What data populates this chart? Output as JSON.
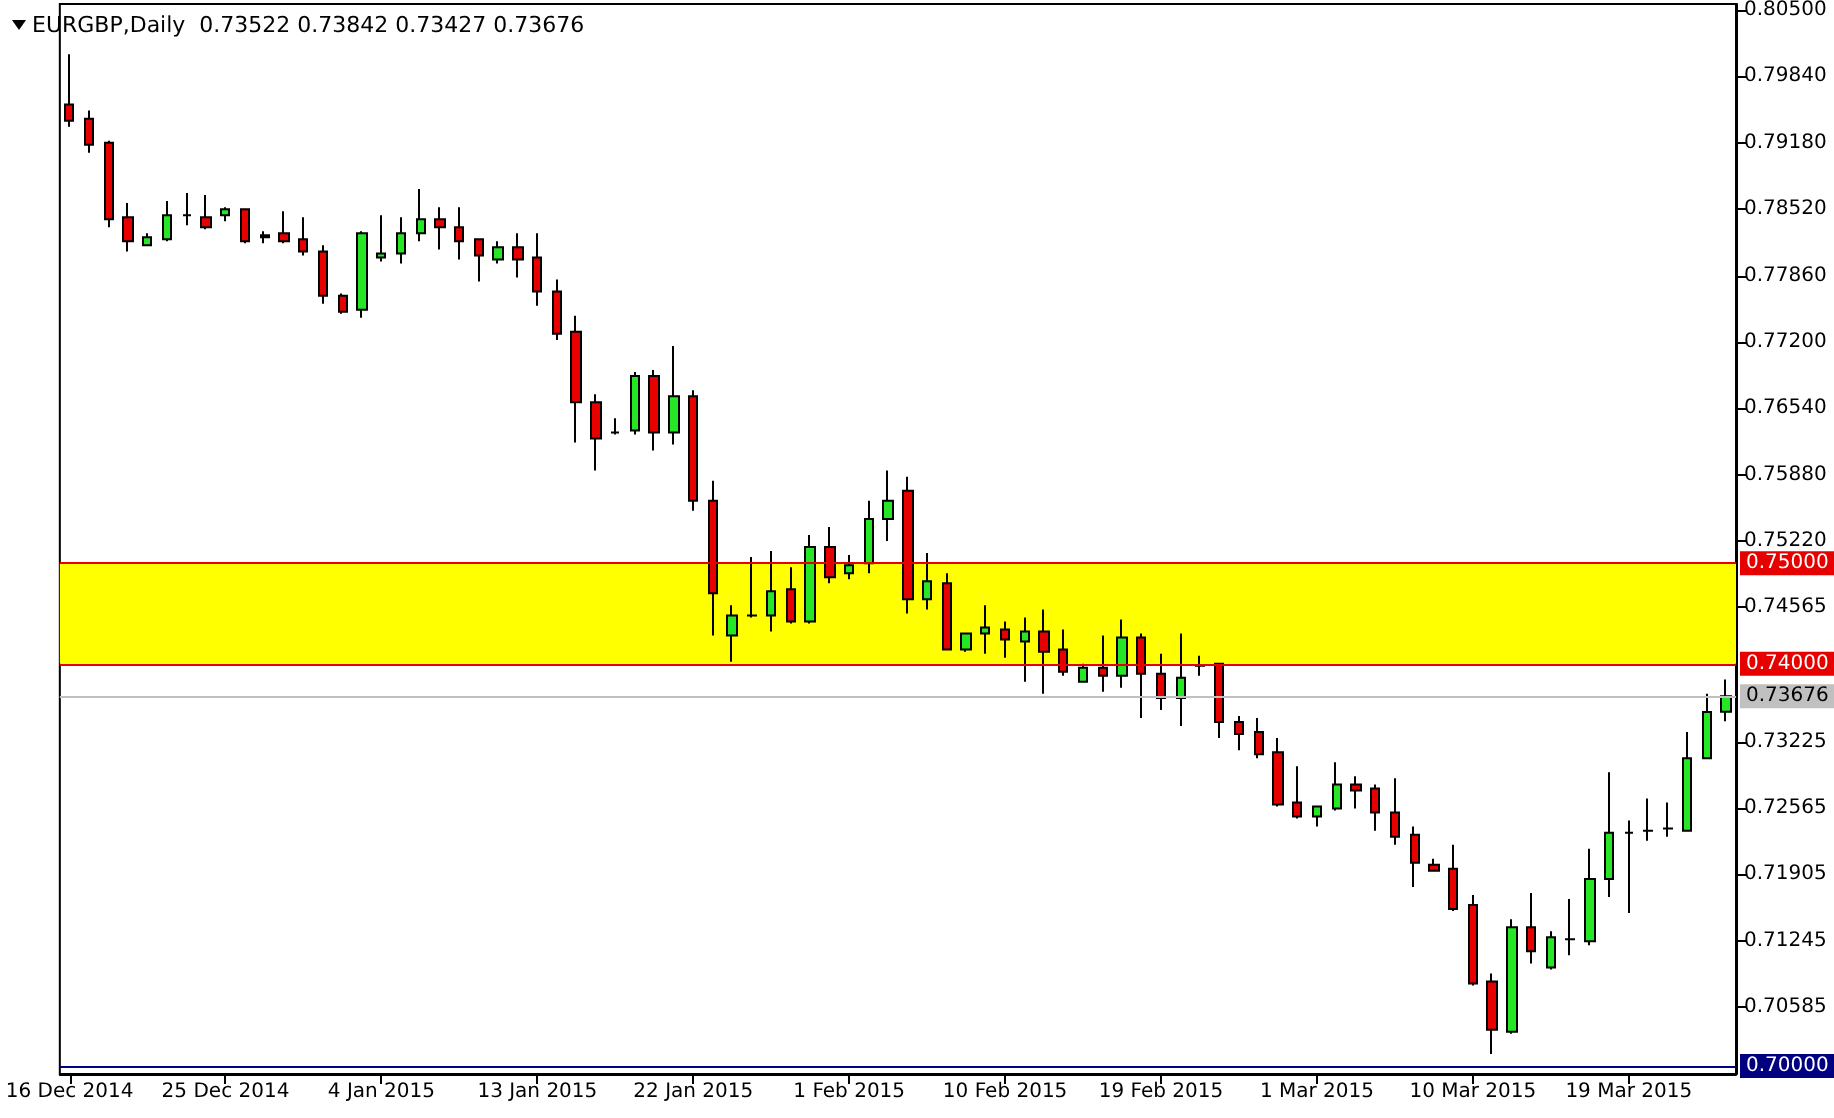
{
  "chart_data": {
    "type": "candlestick",
    "title": "EURGBP,Daily  0.73522 0.73842 0.73427 0.73676",
    "categories": [
      "16 Dec 2014",
      null,
      null,
      null,
      null,
      null,
      null,
      null,
      "25 Dec 2014",
      null,
      null,
      null,
      null,
      null,
      null,
      null,
      "4 Jan 2015",
      null,
      null,
      null,
      null,
      null,
      null,
      null,
      "13 Jan 2015",
      null,
      null,
      null,
      null,
      null,
      null,
      null,
      "22 Jan 2015",
      null,
      null,
      null,
      null,
      null,
      null,
      null,
      "1 Feb 2015",
      null,
      null,
      null,
      null,
      null,
      null,
      null,
      "10 Feb 2015",
      null,
      null,
      null,
      null,
      null,
      null,
      null,
      "19 Feb 2015",
      null,
      null,
      null,
      null,
      null,
      null,
      null,
      "1 Mar 2015",
      null,
      null,
      null,
      null,
      null,
      null,
      null,
      "10 Mar 2015",
      null,
      null,
      null,
      null,
      null,
      null,
      null,
      "19 Mar 2015",
      null,
      null,
      null,
      null,
      null
    ],
    "ohlc": [
      [
        0.7956,
        0.8006,
        0.7934,
        0.794
      ],
      [
        0.7942,
        0.795,
        0.7908,
        0.7916
      ],
      [
        0.7918,
        0.792,
        0.7834,
        0.7842
      ],
      [
        0.7844,
        0.7858,
        0.781,
        0.782
      ],
      [
        0.7816,
        0.7828,
        0.7816,
        0.7824
      ],
      [
        0.7822,
        0.786,
        0.782,
        0.7846
      ],
      [
        0.7846,
        0.7868,
        0.7836,
        0.7846
      ],
      [
        0.7844,
        0.7866,
        0.7832,
        0.7834
      ],
      [
        0.7846,
        0.7854,
        0.784,
        0.7852
      ],
      [
        0.7852,
        0.7852,
        0.7818,
        0.782
      ],
      [
        0.7824,
        0.783,
        0.7818,
        0.7826
      ],
      [
        0.7828,
        0.785,
        0.7818,
        0.782
      ],
      [
        0.7822,
        0.7844,
        0.7806,
        0.781
      ],
      [
        0.781,
        0.7816,
        0.7758,
        0.7766
      ],
      [
        0.7766,
        0.7768,
        0.7748,
        0.775
      ],
      [
        0.7752,
        0.783,
        0.7744,
        0.7828
      ],
      [
        0.7804,
        0.7846,
        0.78,
        0.7808
      ],
      [
        0.7808,
        0.7844,
        0.7798,
        0.7828
      ],
      [
        0.7828,
        0.7872,
        0.782,
        0.7842
      ],
      [
        0.7842,
        0.7854,
        0.7812,
        0.7834
      ],
      [
        0.7834,
        0.7854,
        0.7802,
        0.782
      ],
      [
        0.7822,
        0.7822,
        0.778,
        0.7806
      ],
      [
        0.7802,
        0.782,
        0.7798,
        0.7814
      ],
      [
        0.7814,
        0.7828,
        0.7784,
        0.7802
      ],
      [
        0.7804,
        0.7828,
        0.7756,
        0.777
      ],
      [
        0.777,
        0.7782,
        0.7722,
        0.7728
      ],
      [
        0.773,
        0.7746,
        0.762,
        0.766
      ],
      [
        0.766,
        0.7668,
        0.7592,
        0.7624
      ],
      [
        0.763,
        0.7644,
        0.7628,
        0.763
      ],
      [
        0.7632,
        0.769,
        0.7628,
        0.7686
      ],
      [
        0.7686,
        0.7692,
        0.7612,
        0.763
      ],
      [
        0.763,
        0.7716,
        0.7618,
        0.7666
      ],
      [
        0.7666,
        0.7672,
        0.7552,
        0.7562
      ],
      [
        0.7562,
        0.7582,
        0.7428,
        0.747
      ],
      [
        0.7428,
        0.7458,
        0.7402,
        0.7448
      ],
      [
        0.7448,
        0.7506,
        0.7446,
        0.7448
      ],
      [
        0.7448,
        0.7512,
        0.7432,
        0.7472
      ],
      [
        0.7474,
        0.7496,
        0.744,
        0.7442
      ],
      [
        0.7442,
        0.7528,
        0.744,
        0.7516
      ],
      [
        0.7516,
        0.7536,
        0.748,
        0.7486
      ],
      [
        0.749,
        0.7508,
        0.7484,
        0.7498
      ],
      [
        0.75,
        0.7562,
        0.749,
        0.7544
      ],
      [
        0.7544,
        0.7592,
        0.7522,
        0.7562
      ],
      [
        0.7572,
        0.7586,
        0.745,
        0.7464
      ],
      [
        0.7464,
        0.751,
        0.7454,
        0.7482
      ],
      [
        0.748,
        0.749,
        0.7414,
        0.7414
      ],
      [
        0.7414,
        0.743,
        0.7412,
        0.743
      ],
      [
        0.743,
        0.7458,
        0.741,
        0.7436
      ],
      [
        0.7434,
        0.7442,
        0.7406,
        0.7424
      ],
      [
        0.7422,
        0.7446,
        0.7382,
        0.7432
      ],
      [
        0.7432,
        0.7454,
        0.737,
        0.7412
      ],
      [
        0.7414,
        0.7434,
        0.7388,
        0.7392
      ],
      [
        0.7382,
        0.74,
        0.7382,
        0.7396
      ],
      [
        0.7396,
        0.7428,
        0.7372,
        0.7388
      ],
      [
        0.7388,
        0.7444,
        0.7376,
        0.7426
      ],
      [
        0.7426,
        0.743,
        0.7346,
        0.739
      ],
      [
        0.739,
        0.741,
        0.7354,
        0.7366
      ],
      [
        0.7366,
        0.743,
        0.7338,
        0.7386
      ],
      [
        0.7398,
        0.7408,
        0.7388,
        0.7398
      ],
      [
        0.74,
        0.74,
        0.7326,
        0.7342
      ],
      [
        0.7342,
        0.7348,
        0.7314,
        0.733
      ],
      [
        0.7332,
        0.7346,
        0.7306,
        0.731
      ],
      [
        0.7312,
        0.7326,
        0.7258,
        0.726
      ],
      [
        0.7262,
        0.7298,
        0.7246,
        0.7248
      ],
      [
        0.7248,
        0.7258,
        0.7238,
        0.7258
      ],
      [
        0.7256,
        0.7302,
        0.7254,
        0.728
      ],
      [
        0.728,
        0.7288,
        0.7256,
        0.7274
      ],
      [
        0.7276,
        0.728,
        0.7234,
        0.7252
      ],
      [
        0.7252,
        0.7286,
        0.722,
        0.7228
      ],
      [
        0.723,
        0.7238,
        0.7178,
        0.7202
      ],
      [
        0.72,
        0.7206,
        0.7194,
        0.7194
      ],
      [
        0.7196,
        0.722,
        0.7154,
        0.7156
      ],
      [
        0.716,
        0.717,
        0.708,
        0.7082
      ],
      [
        0.7084,
        0.7092,
        0.7012,
        0.7036
      ],
      [
        0.7034,
        0.7146,
        0.7032,
        0.7138
      ],
      [
        0.7138,
        0.7172,
        0.7102,
        0.7114
      ],
      [
        0.7098,
        0.7134,
        0.7096,
        0.7128
      ],
      [
        0.7126,
        0.7166,
        0.711,
        0.7126
      ],
      [
        0.7124,
        0.7216,
        0.712,
        0.7186
      ],
      [
        0.7186,
        0.7292,
        0.7168,
        0.7232
      ],
      [
        0.7232,
        0.7244,
        0.7152,
        0.7232
      ],
      [
        0.7234,
        0.7266,
        0.7224,
        0.7234
      ],
      [
        0.7236,
        0.7262,
        0.7228,
        0.7236
      ],
      [
        0.7234,
        0.7332,
        0.7234,
        0.7306
      ],
      [
        0.7306,
        0.737,
        0.7306,
        0.7352
      ],
      [
        0.73522,
        0.73842,
        0.73427,
        0.73676
      ]
    ],
    "colors": [
      "#e60000",
      "#e60000",
      "#e60000",
      "#e60000",
      "#26e626",
      "#26e626",
      "#000000",
      "#e60000",
      "#26e626",
      "#e60000",
      "#000000",
      "#e60000",
      "#e60000",
      "#e60000",
      "#e60000",
      "#26e626",
      "#26e626",
      "#26e626",
      "#26e626",
      "#e60000",
      "#e60000",
      "#e60000",
      "#26e626",
      "#e60000",
      "#e60000",
      "#e60000",
      "#e60000",
      "#e60000",
      "#000000",
      "#26e626",
      "#e60000",
      "#26e626",
      "#e60000",
      "#e60000",
      "#26e626",
      "#000000",
      "#26e626",
      "#e60000",
      "#26e626",
      "#e60000",
      "#26e626",
      "#26e626",
      "#26e626",
      "#e60000",
      "#26e626",
      "#e60000",
      "#26e626",
      "#26e626",
      "#e60000",
      "#26e626",
      "#e60000",
      "#e60000",
      "#26e626",
      "#e60000",
      "#26e626",
      "#e60000",
      "#e60000",
      "#26e626",
      "#000000",
      "#e60000",
      "#e60000",
      "#e60000",
      "#e60000",
      "#e60000",
      "#26e626",
      "#26e626",
      "#e60000",
      "#e60000",
      "#e60000",
      "#e60000",
      "#e60000",
      "#e60000",
      "#e60000",
      "#e60000",
      "#26e626",
      "#e60000",
      "#26e626",
      "#000000",
      "#26e626",
      "#26e626",
      "#000000",
      "#000000",
      "#000000",
      "#26e626",
      "#26e626",
      "#26e626"
    ],
    "ylim": [
      0.6992,
      0.8056
    ],
    "yticks": [
      {
        "value": 0.805,
        "label": "0.80500"
      },
      {
        "value": 0.7984,
        "label": "0.79840"
      },
      {
        "value": 0.7918,
        "label": "0.79180"
      },
      {
        "value": 0.7852,
        "label": "0.78520"
      },
      {
        "value": 0.7786,
        "label": "0.77860"
      },
      {
        "value": 0.772,
        "label": "0.77200"
      },
      {
        "value": 0.7654,
        "label": "0.76540"
      },
      {
        "value": 0.7588,
        "label": "0.75880"
      },
      {
        "value": 0.7522,
        "label": "0.75220"
      },
      {
        "value": 0.74565,
        "label": "0.74565"
      },
      {
        "value": 0.73225,
        "label": "0.73225"
      },
      {
        "value": 0.72565,
        "label": "0.72565"
      },
      {
        "value": 0.71905,
        "label": "0.71905"
      },
      {
        "value": 0.71245,
        "label": "0.71245"
      },
      {
        "value": 0.70585,
        "label": "0.70585"
      }
    ],
    "bands": [
      {
        "axis": "y",
        "from": 0.74,
        "to": 0.75,
        "color": "#ffff00"
      }
    ],
    "ref_lines": [
      {
        "axis": "y",
        "value": 0.75,
        "label": "0.75000",
        "color": "#e60000"
      },
      {
        "axis": "y",
        "value": 0.74,
        "label": "0.74000",
        "color": "#e60000"
      },
      {
        "axis": "y",
        "value": 0.73676,
        "label": "0.73676",
        "color": "#c0c0c0"
      },
      {
        "axis": "y",
        "value": 0.7,
        "label": "0.70000",
        "color": "#000080"
      }
    ]
  }
}
